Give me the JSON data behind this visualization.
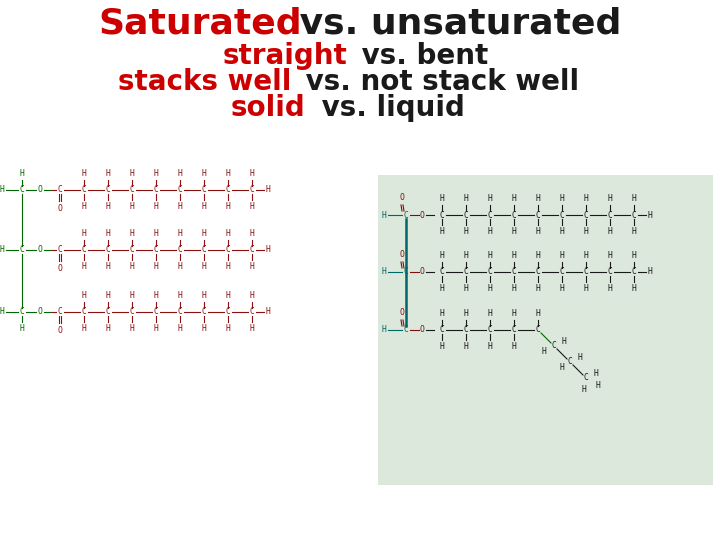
{
  "title_line1_red": "Saturated",
  "title_line1_black": " vs. unsaturated",
  "title_line2_red": "straight",
  "title_line2_black": " vs. bent",
  "title_line3_red": "stacks well",
  "title_line3_black": " vs. not stack well",
  "title_line4_red": "solid",
  "title_line4_black": " vs. liquid",
  "bg_color": "#ffffff",
  "red_color": "#cc0000",
  "green_color": "#006600",
  "chain_color": "#8b1010",
  "teal_color": "#006666",
  "panel_bg": "#dce8dc",
  "title_fs1": 26,
  "title_fs2": 20,
  "chain_fs": 5.8,
  "chain_step": 24,
  "lw": 0.8
}
